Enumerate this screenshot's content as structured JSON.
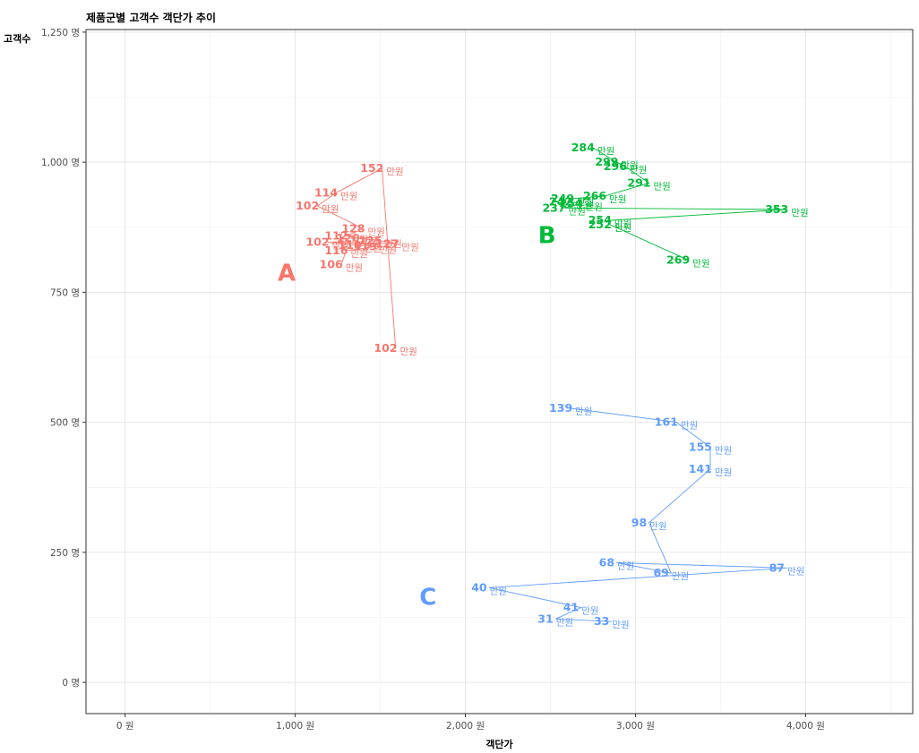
{
  "chart_data": {
    "type": "scatter",
    "title": "제품군별 고객수 객단가 추이",
    "xlabel": "객단가",
    "ylabel": "고객수",
    "xlim": [
      -230,
      4630
    ],
    "ylim": [
      -60,
      1255
    ],
    "x_ticks": [
      0,
      1000,
      2000,
      3000,
      4000
    ],
    "x_tick_labels": [
      "0 원",
      "1,000 원",
      "2,000 원",
      "3,000 원",
      "4,000 원"
    ],
    "x_minor": [
      500,
      1500,
      2500,
      3500,
      4500
    ],
    "y_ticks": [
      0,
      250,
      500,
      750,
      1000,
      1250
    ],
    "y_tick_labels": [
      "0 명",
      "250 명",
      "500 명",
      "750 명",
      "1,000 명",
      "1,250 명"
    ],
    "y_minor": [
      125,
      375,
      625,
      875,
      1125
    ],
    "unit_suffix": "만원",
    "grid": true,
    "series": [
      {
        "group": "A",
        "color": "#F8766D",
        "group_label_pos": [
          950,
          788
        ],
        "points": [
          {
            "x": 1590,
            "y": 642,
            "label": "102"
          },
          {
            "x": 1510,
            "y": 988,
            "label": "152"
          },
          {
            "x": 1240,
            "y": 941,
            "label": "114"
          },
          {
            "x": 1130,
            "y": 916,
            "label": "102"
          },
          {
            "x": 1400,
            "y": 872,
            "label": "128"
          },
          {
            "x": 1300,
            "y": 858,
            "label": "112"
          },
          {
            "x": 1370,
            "y": 854,
            "label": "120"
          },
          {
            "x": 1500,
            "y": 849,
            "label": "125"
          },
          {
            "x": 1600,
            "y": 843,
            "label": "127"
          },
          {
            "x": 1190,
            "y": 846,
            "label": "102"
          },
          {
            "x": 1380,
            "y": 840,
            "label": "110"
          },
          {
            "x": 1470,
            "y": 838,
            "label": "119"
          },
          {
            "x": 1300,
            "y": 830,
            "label": "116"
          },
          {
            "x": 1270,
            "y": 803,
            "label": "106"
          }
        ]
      },
      {
        "group": "B",
        "color": "#00BA38",
        "group_label_pos": [
          2480,
          860
        ],
        "points": [
          {
            "x": 2750,
            "y": 1028,
            "label": "284"
          },
          {
            "x": 2890,
            "y": 1000,
            "label": "299"
          },
          {
            "x": 2940,
            "y": 992,
            "label": "296"
          },
          {
            "x": 3080,
            "y": 960,
            "label": "291"
          },
          {
            "x": 2820,
            "y": 935,
            "label": "266"
          },
          {
            "x": 2630,
            "y": 930,
            "label": "249"
          },
          {
            "x": 2620,
            "y": 924,
            "label": "242"
          },
          {
            "x": 2680,
            "y": 920,
            "label": "254"
          },
          {
            "x": 2580,
            "y": 912,
            "label": "237"
          },
          {
            "x": 3890,
            "y": 909,
            "label": "353"
          },
          {
            "x": 2850,
            "y": 888,
            "label": "254"
          },
          {
            "x": 2850,
            "y": 880,
            "label": "252"
          },
          {
            "x": 3310,
            "y": 812,
            "label": "269"
          }
        ]
      },
      {
        "group": "C",
        "color": "#619CFF",
        "group_label_pos": [
          1780,
          165
        ],
        "points": [
          {
            "x": 2620,
            "y": 527,
            "label": "139"
          },
          {
            "x": 3240,
            "y": 500,
            "label": "161"
          },
          {
            "x": 3440,
            "y": 452,
            "label": "155"
          },
          {
            "x": 3440,
            "y": 410,
            "label": "141"
          },
          {
            "x": 3080,
            "y": 307,
            "label": "98"
          },
          {
            "x": 3210,
            "y": 210,
            "label": "69"
          },
          {
            "x": 2890,
            "y": 230,
            "label": "68"
          },
          {
            "x": 3890,
            "y": 220,
            "label": "87"
          },
          {
            "x": 2140,
            "y": 182,
            "label": "40"
          },
          {
            "x": 2680,
            "y": 144,
            "label": "41"
          },
          {
            "x": 2530,
            "y": 122,
            "label": "31"
          },
          {
            "x": 2860,
            "y": 117,
            "label": "33"
          }
        ]
      }
    ]
  }
}
